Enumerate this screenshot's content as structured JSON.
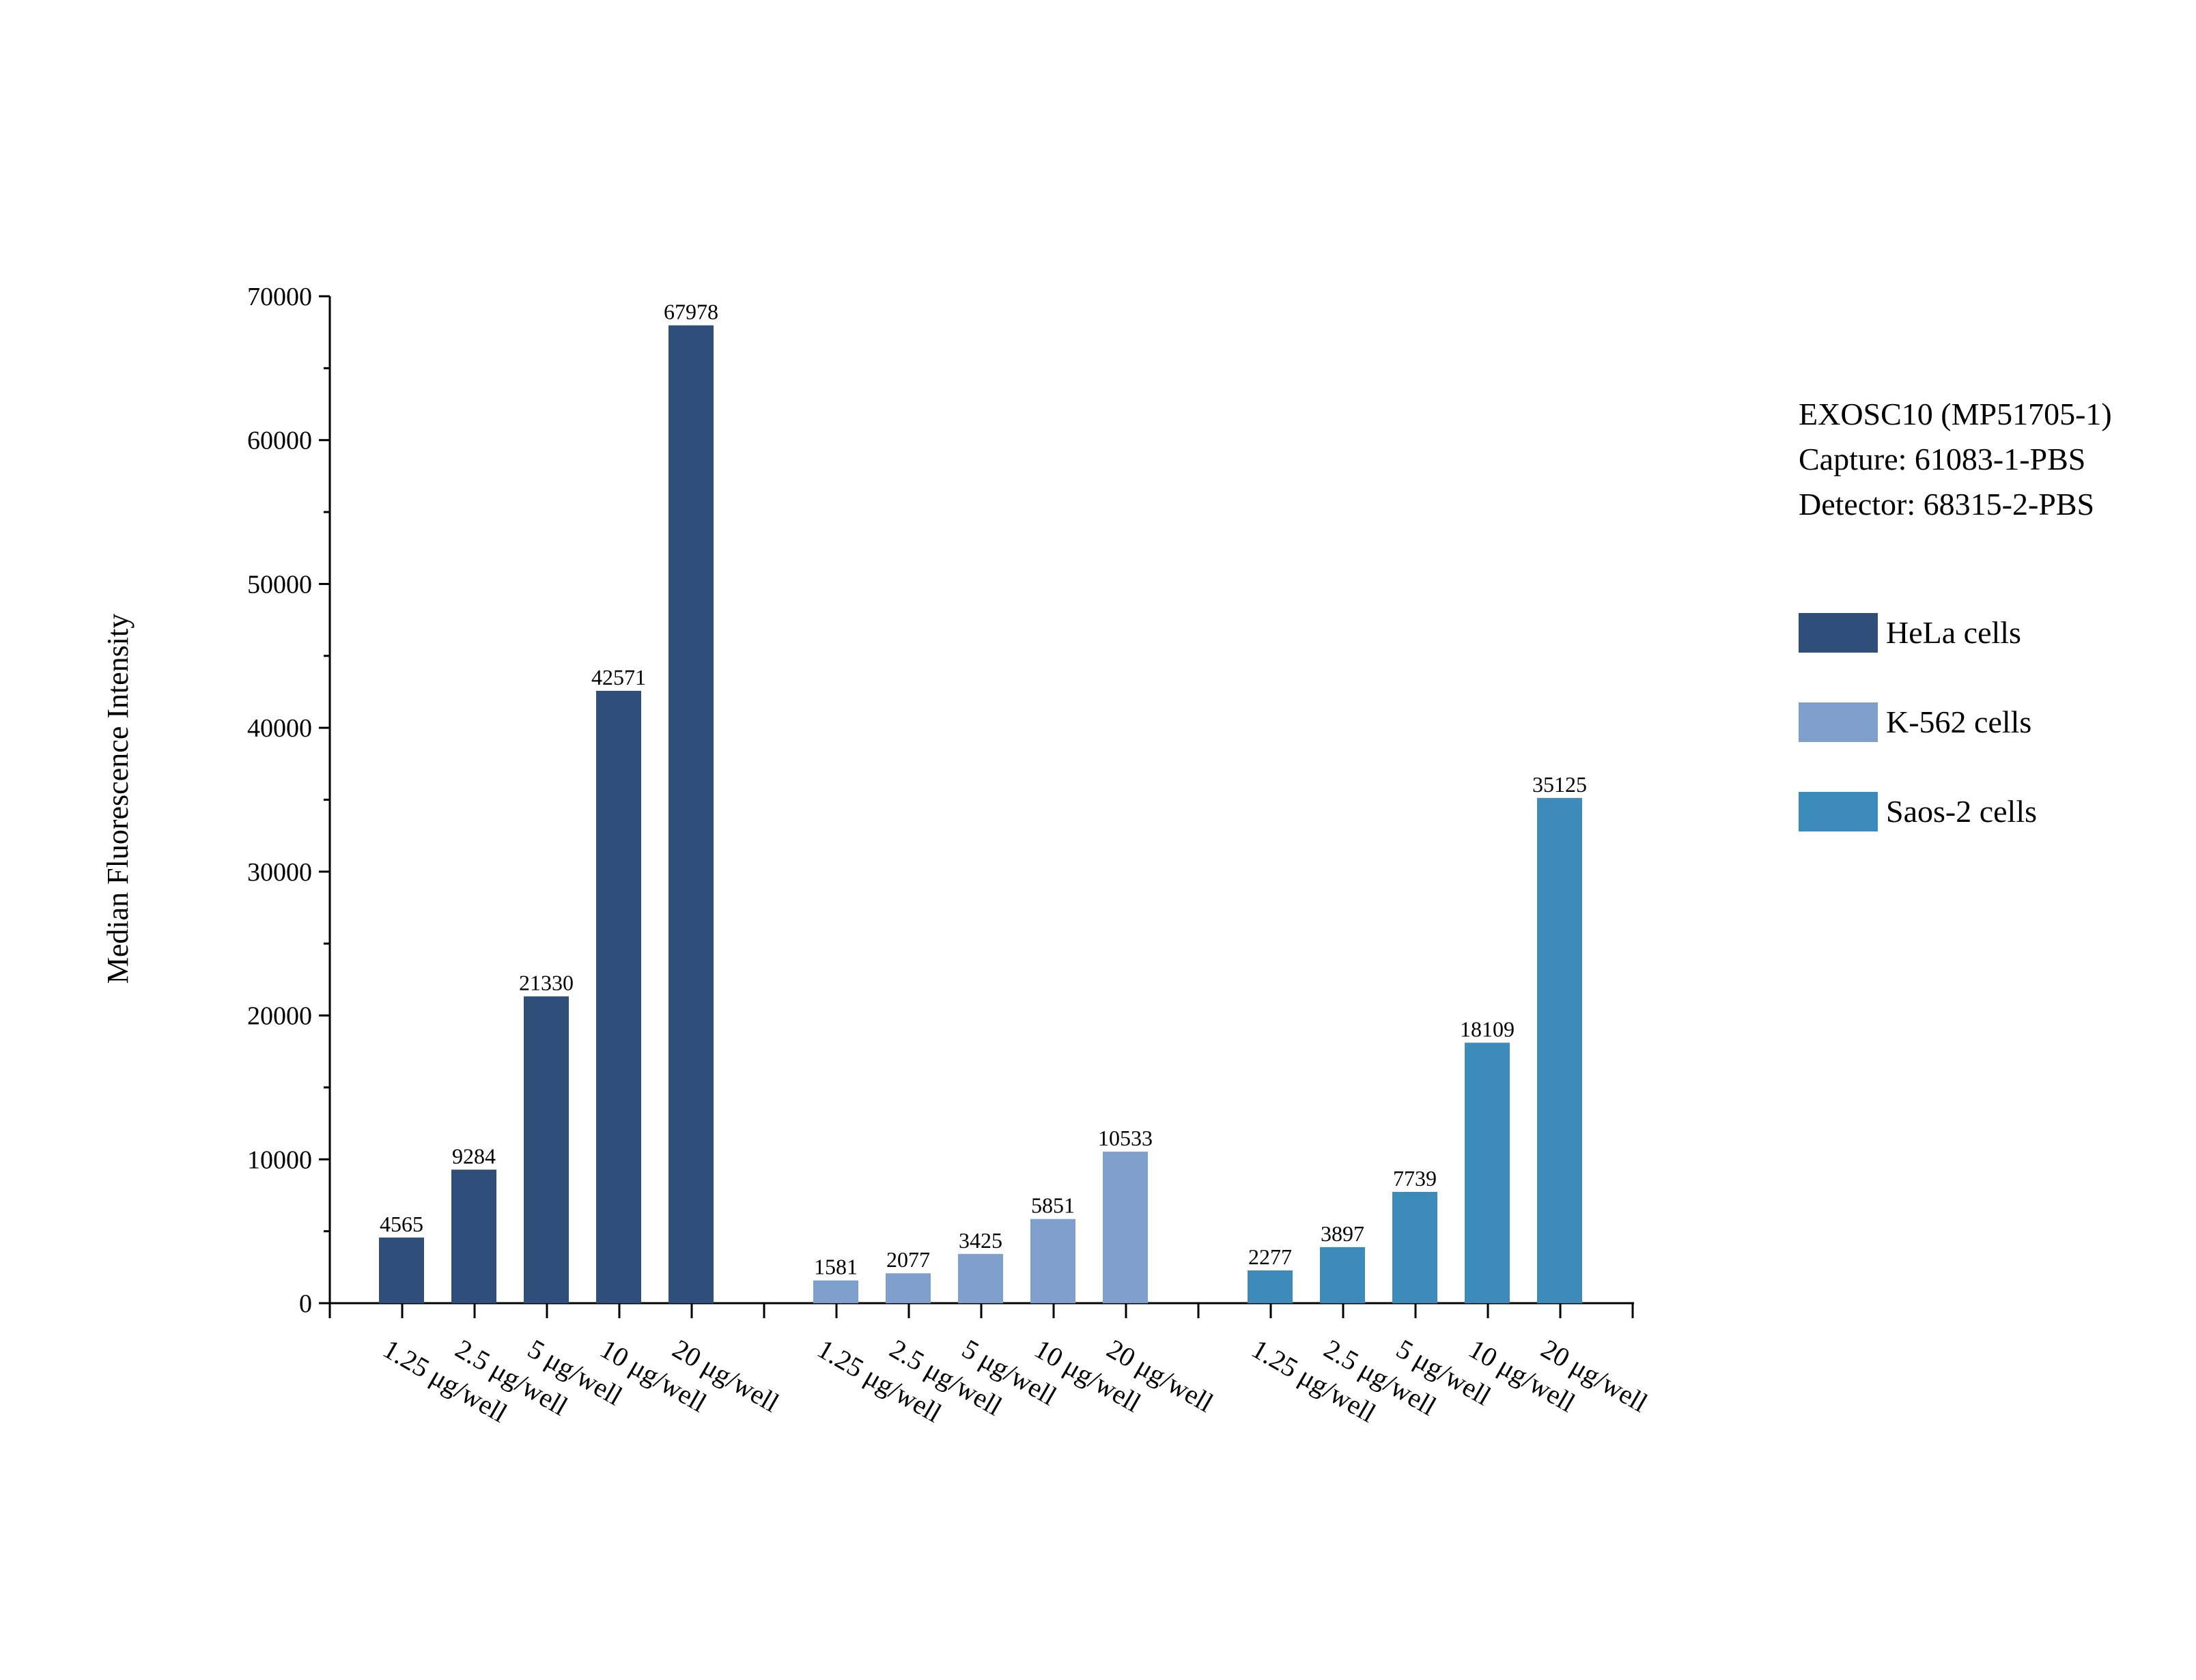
{
  "chart_data": {
    "type": "bar",
    "title": "",
    "xlabel": "",
    "ylabel": "Median Fluorescence Intensity",
    "ylim": [
      0,
      70000
    ],
    "yticks": [
      0,
      10000,
      20000,
      30000,
      40000,
      50000,
      60000,
      70000
    ],
    "grid": false,
    "legend_position": "right",
    "categories": [
      "1.25 μg/well",
      "2.5 μg/well",
      "5 μg/well",
      "10 μg/well",
      "20 μg/well"
    ],
    "series": [
      {
        "name": "HeLa cells",
        "color": "#2f4f7a",
        "values": [
          4565,
          9284,
          21330,
          42571,
          67978
        ]
      },
      {
        "name": "K-562 cells",
        "color": "#7f9fcc",
        "values": [
          1581,
          2077,
          3425,
          5851,
          10533
        ]
      },
      {
        "name": "Saos-2 cells",
        "color": "#3d8bba",
        "values": [
          2277,
          3897,
          7739,
          18109,
          35125
        ]
      }
    ],
    "annotation_lines": [
      "EXOSC10 (MP51705-1)",
      "Capture: 61083-1-PBS",
      "Detector: 68315-2-PBS"
    ]
  }
}
